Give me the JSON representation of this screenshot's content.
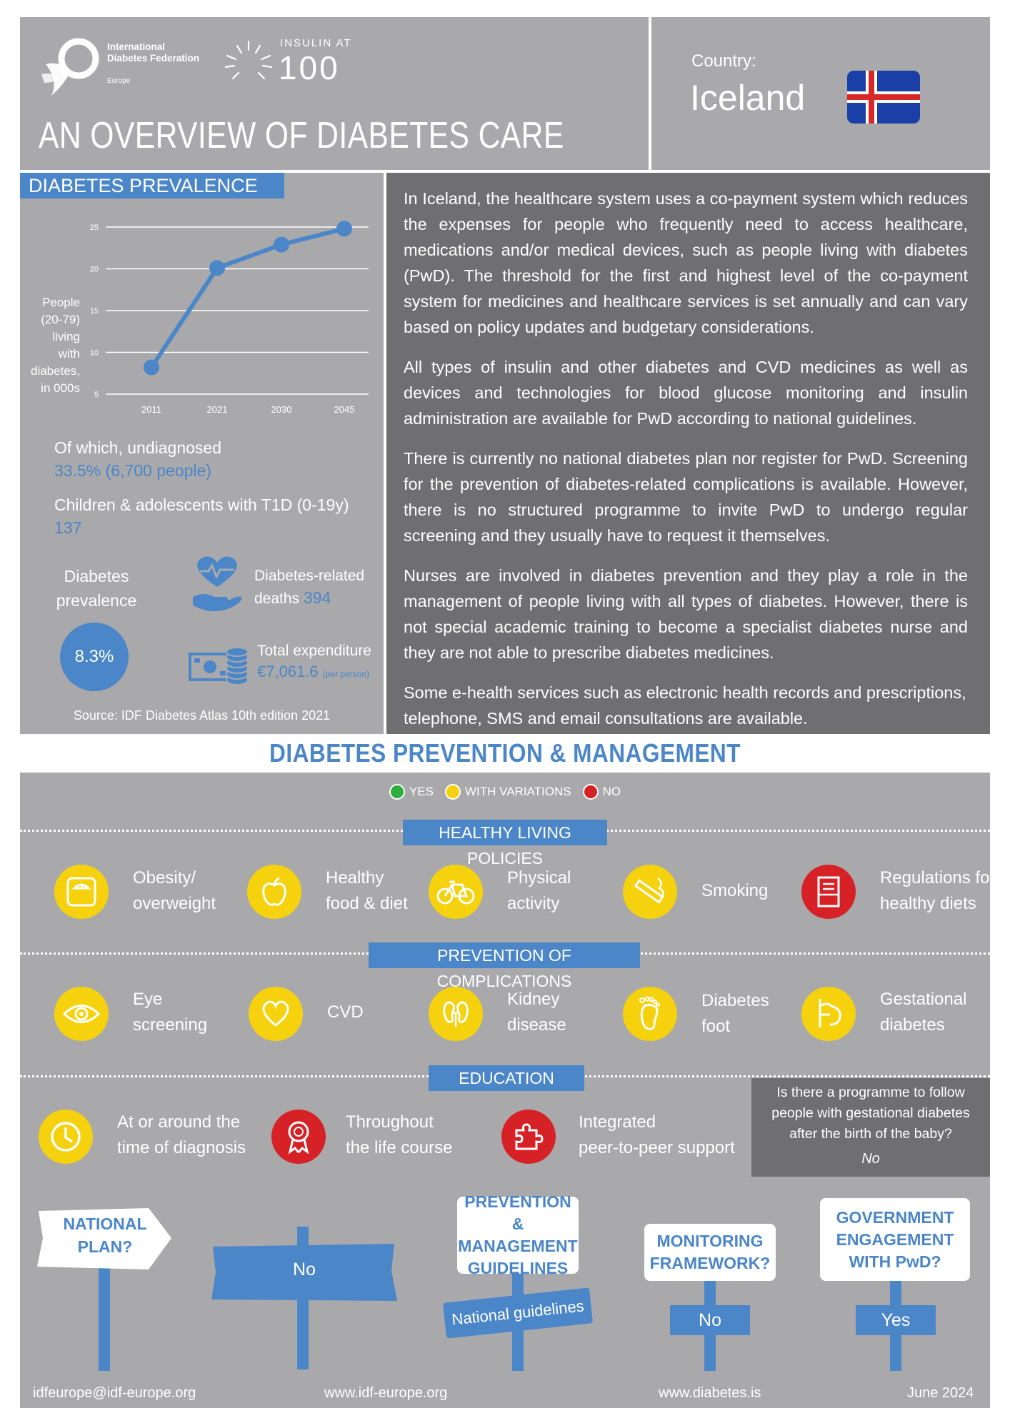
{
  "header": {
    "org_name": "International Diabetes Federation",
    "org_region": "Europe",
    "insulin_top": "INSULIN AT",
    "insulin_num": "100",
    "title": "AN OVERVIEW OF DIABETES CARE",
    "country_label": "Country:",
    "country": "Iceland"
  },
  "prevalence": {
    "tab": "DIABETES PREVALENCE",
    "ylabel_lines": [
      "People",
      "(20-79)",
      "living",
      "with",
      "diabetes,",
      "in 000s"
    ],
    "undiagnosed_label": "Of which, undiagnosed",
    "undiagnosed_value": "33.5% (6,700 people)",
    "children_label": "Children & adolescents with T1D (0-19y)",
    "children_value": "137",
    "prevalence_label": "Diabetes prevalence",
    "prevalence_value": "8.3%",
    "deaths_label": "Diabetes-related deaths",
    "deaths_value": "394",
    "expenditure_label": "Total expenditure",
    "expenditure_value": "€7,061.6",
    "expenditure_unit": "(per person)",
    "source": "Source: IDF Diabetes Atlas 10th edition 2021"
  },
  "chart_data": {
    "type": "line",
    "categories": [
      "2011",
      "2021",
      "2030",
      "2045"
    ],
    "values": [
      8.2,
      20.1,
      22.9,
      24.8
    ],
    "yticks": [
      5,
      10,
      15,
      20,
      25
    ],
    "ylim": [
      5,
      25
    ],
    "ylabel": "People (20-79) living with diabetes, in 000s",
    "grid": true,
    "color": "#4a86c8"
  },
  "text": {
    "p1": "In Iceland, the healthcare system uses a co-payment system which reduces the expenses for people who frequently need to access healthcare, medications and/or medical devices, such as people living with diabetes (PwD). The threshold for the first and highest level of the co-payment system for medicines and healthcare services is set annually and can vary based on policy updates and budgetary considerations.",
    "p2": "All types of insulin and other diabetes and CVD medicines as well as devices and technologies for blood glucose monitoring and insulin administration are available for PwD according to national guidelines.",
    "p3": "There is currently no national diabetes plan nor register for PwD. Screening for the prevention of diabetes-related complications is available. However, there is no structured programme to invite PwD to undergo regular screening and they usually have to request it themselves.",
    "p4": "Nurses are involved in diabetes prevention and they play a role in the management of people living with all types of diabetes. However, there is not special academic training to become a specialist diabetes nurse and they are not able to prescribe diabetes medicines.",
    "p5": "Some e-health services such as electronic health records and prescriptions, telephone, SMS and email consultations are available."
  },
  "section2": {
    "title": "DIABETES PREVENTION & MANAGEMENT",
    "legend": {
      "yes": "YES",
      "variations": "WITH VARIATIONS",
      "no": "NO",
      "yes_color": "#2eae3e",
      "variations_color": "#f5d20d",
      "no_color": "#d62126"
    },
    "healthy_tab": "HEALTHY LIVING POLICIES",
    "healthy": [
      {
        "l1": "Obesity/",
        "l2": "overweight",
        "status": "with-variations",
        "icon": "scale-icon"
      },
      {
        "l1": "Healthy",
        "l2": "food & diet",
        "status": "with-variations",
        "icon": "apple-icon"
      },
      {
        "l1": "Physical",
        "l2": "activity",
        "status": "with-variations",
        "icon": "bicycle-icon"
      },
      {
        "l1": "Smoking",
        "l2": "",
        "status": "with-variations",
        "icon": "cigarette-icon"
      },
      {
        "l1": "Regulations for",
        "l2": "healthy diets",
        "status": "no",
        "icon": "document-icon"
      }
    ],
    "complications_tab": "PREVENTION OF COMPLICATIONS",
    "complications": [
      {
        "l1": "Eye",
        "l2": "screening",
        "status": "with-variations",
        "icon": "eye-icon"
      },
      {
        "l1": "CVD",
        "l2": "",
        "status": "with-variations",
        "icon": "heart-icon"
      },
      {
        "l1": "Kidney",
        "l2": "disease",
        "status": "with-variations",
        "icon": "kidney-icon"
      },
      {
        "l1": "Diabetes",
        "l2": "foot",
        "status": "with-variations",
        "icon": "foot-icon"
      },
      {
        "l1": "Gestational",
        "l2": "diabetes",
        "status": "with-variations",
        "icon": "pregnancy-icon"
      }
    ],
    "education_tab": "EDUCATION",
    "education": [
      {
        "l1": "At or around the",
        "l2": "time of diagnosis",
        "status": "with-variations",
        "icon": "clock-icon"
      },
      {
        "l1": "Throughout",
        "l2": "the life course",
        "status": "no",
        "icon": "ribbon-icon"
      },
      {
        "l1": "Integrated",
        "l2": "peer-to-peer support",
        "status": "no",
        "icon": "puzzle-icon"
      }
    ],
    "gestational_q": "Is there a programme to follow people with gestational diabetes after the birth of the baby?",
    "gestational_a": "No"
  },
  "signs": {
    "national_plan_q": "NATIONAL PLAN?",
    "national_plan_a": "No",
    "guidelines_q": "PREVENTION & MANAGEMENT GUIDELINES",
    "guidelines_a": "National guidelines",
    "monitoring_q": "MONITORING FRAMEWORK?",
    "monitoring_a": "No",
    "government_q": "GOVERNMENT ENGAGEMENT WITH PwD?",
    "government_a": "Yes"
  },
  "footer": {
    "email": "idfeurope@idf-europe.org",
    "web1": "www.idf-europe.org",
    "web2": "www.diabetes.is",
    "date": "June 2024"
  }
}
